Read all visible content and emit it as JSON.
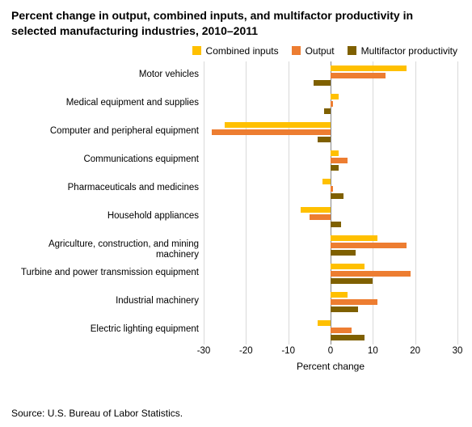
{
  "title": "Percent change in output, combined inputs, and multifactor productivity in selected manufacturing industries, 2010–2011",
  "source": "Source: U.S. Bureau of Labor Statistics.",
  "xlabel": "Percent change",
  "chart": {
    "type": "bar",
    "orientation": "horizontal",
    "background_color": "#ffffff",
    "grid_color": "#d9d9d9",
    "zero_line_color": "#888888",
    "xlim": [
      -30,
      30
    ],
    "xtick_step": 10,
    "xticks": [
      -30,
      -20,
      -10,
      0,
      10,
      20,
      30
    ],
    "bar_gap": 2,
    "label_fontsize": 12,
    "tick_fontsize": 11.5,
    "title_fontsize": 14,
    "series": [
      {
        "key": "combined_inputs",
        "label": "Combined inputs",
        "color": "#ffc000"
      },
      {
        "key": "output",
        "label": "Output",
        "color": "#ed7d31"
      },
      {
        "key": "mfp",
        "label": "Multifactor productivity",
        "color": "#7f6000"
      }
    ],
    "categories": [
      {
        "label": "Motor vehicles",
        "combined_inputs": 18,
        "output": 13,
        "mfp": -4
      },
      {
        "label": "Medical equipment and supplies",
        "combined_inputs": 2,
        "output": 0.5,
        "mfp": -1.5
      },
      {
        "label": "Computer and peripheral equipment",
        "combined_inputs": -25,
        "output": -28,
        "mfp": -3
      },
      {
        "label": "Communications equipment",
        "combined_inputs": 2,
        "output": 4,
        "mfp": 2
      },
      {
        "label": "Pharmaceuticals and medicines",
        "combined_inputs": -2,
        "output": 0.5,
        "mfp": 3
      },
      {
        "label": "Household appliances",
        "combined_inputs": -7,
        "output": -5,
        "mfp": 2.5
      },
      {
        "label": "Agriculture, construction, and mining machinery",
        "combined_inputs": 11,
        "output": 18,
        "mfp": 6
      },
      {
        "label": "Turbine and power transmission equipment",
        "combined_inputs": 8,
        "output": 19,
        "mfp": 10
      },
      {
        "label": "Industrial machinery",
        "combined_inputs": 4,
        "output": 11,
        "mfp": 6.5
      },
      {
        "label": "Electric lighting equipment",
        "combined_inputs": -3,
        "output": 5,
        "mfp": 8
      }
    ]
  }
}
